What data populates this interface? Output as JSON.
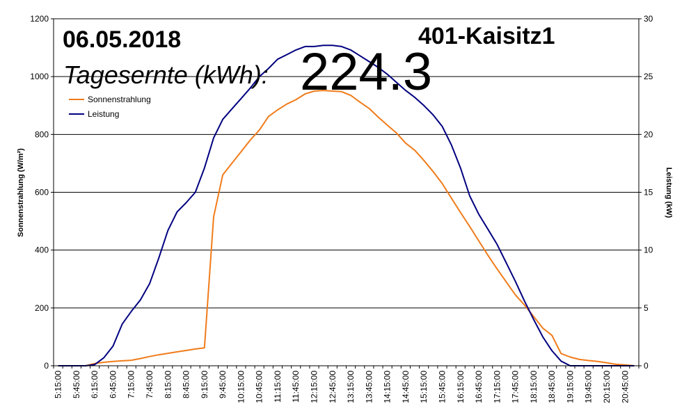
{
  "chart_data": {
    "type": "line",
    "date": "06.05.2018",
    "station": "401-Kaisitz1",
    "harvest_label": "Tagesernte (kWh):",
    "harvest_value": "224.3",
    "y_left": {
      "label": "Sonnenstrahlung (W/m²)",
      "min": 0,
      "max": 1200,
      "step": 200,
      "ticks": [
        "0",
        "200",
        "400",
        "600",
        "800",
        "1000",
        "1200"
      ]
    },
    "y_right": {
      "label": "Leistung (kW)",
      "min": 0,
      "max": 30,
      "step": 5,
      "ticks": [
        "0",
        "5",
        "10",
        "15",
        "20",
        "25",
        "30"
      ]
    },
    "x_tick_labels": [
      "5:15:00",
      "5:45:00",
      "6:15:00",
      "6:45:00",
      "7:15:00",
      "7:45:00",
      "8:15:00",
      "8:45:00",
      "9:15:00",
      "9:45:00",
      "10:15:00",
      "10:45:00",
      "11:15:00",
      "11:45:00",
      "12:15:00",
      "12:45:00",
      "13:15:00",
      "13:45:00",
      "14:15:00",
      "14:45:00",
      "15:15:00",
      "15:45:00",
      "16:15:00",
      "16:45:00",
      "17:15:00",
      "17:45:00",
      "18:15:00",
      "18:45:00",
      "19:15:00",
      "19:45:00",
      "20:15:00",
      "20:45:00"
    ],
    "x": [
      "5:15",
      "5:30",
      "5:45",
      "6:00",
      "6:15",
      "6:30",
      "6:45",
      "7:00",
      "7:15",
      "7:30",
      "7:45",
      "8:00",
      "8:15",
      "8:30",
      "8:45",
      "9:00",
      "9:15",
      "9:30",
      "9:45",
      "10:00",
      "10:15",
      "10:30",
      "10:45",
      "11:00",
      "11:15",
      "11:30",
      "11:45",
      "12:00",
      "12:15",
      "12:30",
      "12:45",
      "13:00",
      "13:15",
      "13:30",
      "13:45",
      "14:00",
      "14:15",
      "14:30",
      "14:45",
      "15:00",
      "15:15",
      "15:30",
      "15:45",
      "16:00",
      "16:15",
      "16:30",
      "16:45",
      "17:00",
      "17:15",
      "17:30",
      "17:45",
      "18:00",
      "18:15",
      "18:30",
      "18:45",
      "19:00",
      "19:15",
      "19:30",
      "19:45",
      "20:00",
      "20:15",
      "20:30",
      "20:45",
      "21:00"
    ],
    "grid": true,
    "legend_position": "top-left",
    "series": [
      {
        "name": "Sonnenstrahlung",
        "axis": "left",
        "color": "#f07b1a",
        "values": [
          0,
          0,
          0,
          0,
          8,
          12,
          15,
          17,
          19,
          25,
          32,
          38,
          43,
          48,
          53,
          58,
          62,
          515,
          660,
          700,
          740,
          780,
          815,
          862,
          885,
          905,
          920,
          940,
          950,
          952,
          950,
          948,
          935,
          912,
          890,
          860,
          832,
          805,
          770,
          745,
          710,
          672,
          630,
          580,
          530,
          482,
          432,
          382,
          335,
          290,
          245,
          210,
          170,
          130,
          105,
          42,
          30,
          22,
          18,
          15,
          10,
          5,
          3,
          0
        ]
      },
      {
        "name": "Leistung",
        "axis": "right",
        "color": "#000080",
        "values": [
          0,
          0,
          0,
          0,
          0.1,
          0.7,
          1.7,
          3.6,
          4.7,
          5.7,
          7.1,
          9.3,
          11.7,
          13.3,
          14.1,
          15.0,
          17.1,
          19.7,
          21.3,
          22.2,
          23.1,
          24.0,
          25.0,
          25.7,
          26.5,
          26.9,
          27.3,
          27.6,
          27.6,
          27.7,
          27.7,
          27.6,
          27.3,
          26.8,
          26.3,
          25.8,
          25.2,
          24.5,
          23.8,
          23.2,
          22.5,
          21.7,
          20.7,
          19.1,
          17.1,
          14.7,
          13.1,
          11.8,
          10.5,
          8.9,
          7.3,
          5.6,
          4.0,
          2.5,
          1.3,
          0.4,
          0,
          0,
          0,
          0,
          0,
          0,
          0,
          0
        ]
      }
    ]
  }
}
